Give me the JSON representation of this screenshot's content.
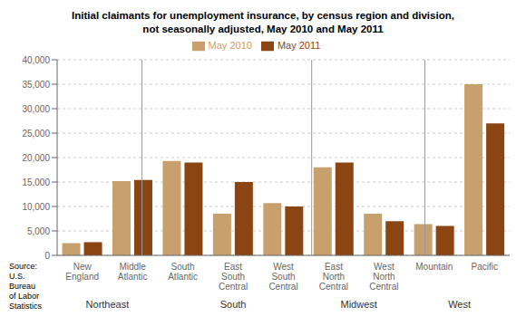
{
  "chart_data": {
    "type": "bar",
    "title": "Initial claimants for unemployment insurance, by census region and division,",
    "subtitle": "not seasonally adjusted, May 2010 and May 2011",
    "categories": [
      "New\nEngland",
      "Middle\nAtlantic",
      "South\nAtlantic",
      "East\nSouth\nCentral",
      "West\nSouth\nCentral",
      "East\nNorth\nCentral",
      "West\nNorth\nCentral",
      "Mountain",
      "Pacific"
    ],
    "series": [
      {
        "name": "May 2010",
        "color": "#C8A06E",
        "values": [
          2500,
          15200,
          19300,
          8500,
          10700,
          18000,
          8500,
          6400,
          35000
        ]
      },
      {
        "name": "May 2011",
        "color": "#8B4513",
        "values": [
          2700,
          15400,
          19000,
          15000,
          10000,
          19000,
          7000,
          6000,
          27000
        ]
      }
    ],
    "ylim": [
      0,
      40000
    ],
    "yticks": [
      0,
      {
        "value": 5000,
        "label": "5,000"
      },
      {
        "value": 10000,
        "label": "10,000"
      },
      {
        "value": 15000,
        "label": "15,000"
      },
      {
        "value": 20000,
        "label": "20,000"
      },
      {
        "value": 25000,
        "label": "25,000"
      },
      {
        "value": 30000,
        "label": "30,000"
      },
      {
        "value": 35000,
        "label": "35,000"
      },
      {
        "value": 40000,
        "label": "40,000"
      }
    ],
    "grid": true,
    "legend": "top",
    "annotations": [
      {
        "text": "Northeast",
        "categories": [
          "New\nEngland",
          "Middle\nAtlantic"
        ]
      },
      {
        "text": "South",
        "categories": [
          "South\nAtlantic",
          "East\nSouth\nCentral",
          "West\nSouth\nCentral"
        ]
      },
      {
        "text": "Midwest",
        "categories": [
          "East\nNorth\nCentral",
          "West\nNorth\nCentral"
        ]
      },
      {
        "text": "West",
        "categories": [
          "Mountain",
          "Pacific"
        ]
      },
      {
        "text": "Source:\nU.S.\nBureau\nof Labor\nStatistics"
      }
    ]
  }
}
